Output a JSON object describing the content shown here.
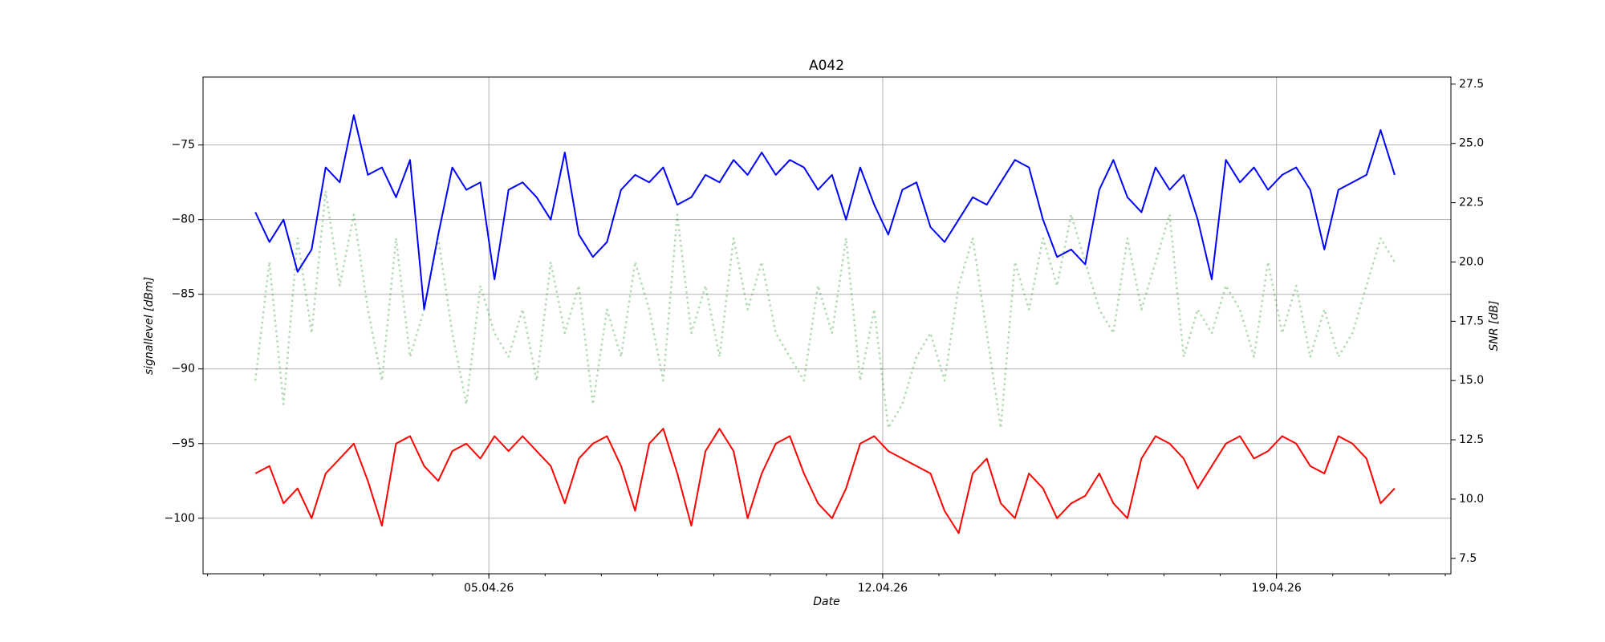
{
  "chart_data": {
    "type": "line",
    "title": "A042",
    "xlabel": "Date",
    "ylabel": "signallevel [dBm]",
    "y2label": "SNR [dB]",
    "x": [
      0.85,
      1.1,
      1.35,
      1.6,
      1.85,
      2.1,
      2.35,
      2.6,
      2.85,
      3.1,
      3.35,
      3.6,
      3.85,
      4.1,
      4.35,
      4.6,
      4.85,
      5.1,
      5.35,
      5.6,
      5.85,
      6.1,
      6.35,
      6.6,
      6.85,
      7.1,
      7.35,
      7.6,
      7.85,
      8.1,
      8.35,
      8.6,
      8.85,
      9.1,
      9.35,
      9.6,
      9.85,
      10.1,
      10.35,
      10.6,
      10.85,
      11.1,
      11.35,
      11.6,
      11.85,
      12.1,
      12.35,
      12.6,
      12.85,
      13.1,
      13.35,
      13.6,
      13.85,
      14.1,
      14.35,
      14.6,
      14.85,
      15.1,
      15.35,
      15.6,
      15.85,
      16.1,
      16.35,
      16.6,
      16.85,
      17.1,
      17.35,
      17.6,
      17.85,
      18.1,
      18.35,
      18.6,
      18.85,
      19.1,
      19.35,
      19.6,
      19.85,
      20.1,
      20.35,
      20.6,
      20.85,
      21.1
    ],
    "series": [
      {
        "color": "#008000",
        "alpha": 0.3,
        "linestyle": "dotted",
        "axis": "y2",
        "values": [
          15,
          20,
          14,
          21,
          17,
          23,
          19,
          22,
          18,
          15,
          21,
          16,
          18,
          21,
          17,
          14,
          19,
          17,
          16,
          18,
          15,
          20,
          17,
          19,
          14,
          18,
          16,
          20,
          18,
          15,
          22,
          17,
          19,
          16,
          21,
          18,
          20,
          17,
          16,
          15,
          19,
          17,
          21,
          15,
          18,
          13,
          14,
          16,
          17,
          15,
          19,
          21,
          17,
          13,
          20,
          18,
          21,
          19,
          22,
          20,
          18,
          17,
          21,
          18,
          20,
          22,
          16,
          18,
          17,
          19,
          18,
          16,
          20,
          17,
          19,
          16,
          18,
          16,
          17,
          19,
          21,
          20
        ]
      },
      {
        "color": "#0000ff",
        "alpha": 1,
        "linestyle": "solid",
        "axis": "y",
        "values": [
          -79.5,
          -81.5,
          -80,
          -83.5,
          -82,
          -76.5,
          -77.5,
          -73,
          -77,
          -76.5,
          -78.5,
          -76,
          -86,
          -81,
          -76.5,
          -78,
          -77.5,
          -84,
          -78,
          -77.5,
          -78.5,
          -80,
          -75.5,
          -81,
          -82.5,
          -81.5,
          -78,
          -77,
          -77.5,
          -76.5,
          -79,
          -78.5,
          -77,
          -77.5,
          -76,
          -77,
          -75.5,
          -77,
          -76,
          -76.5,
          -78,
          -77,
          -80,
          -76.5,
          -79,
          -81,
          -78,
          -77.5,
          -80.5,
          -81.5,
          -80,
          -78.5,
          -79,
          -77.5,
          -76,
          -76.5,
          -80,
          -82.5,
          -82,
          -83,
          -78,
          -76,
          -78.5,
          -79.5,
          -76.5,
          -78,
          -77,
          -80,
          -84,
          -76,
          -77.5,
          -76.5,
          -78,
          -77,
          -76.5,
          -78,
          -82,
          -78,
          -77.5,
          -77,
          -74,
          -77
        ]
      },
      {
        "color": "#ff0000",
        "alpha": 1,
        "linestyle": "solid",
        "axis": "y",
        "values": [
          -97,
          -96.5,
          -99,
          -98,
          -100,
          -97,
          -96,
          -95,
          -97.5,
          -100.5,
          -95,
          -94.5,
          -96.5,
          -97.5,
          -95.5,
          -95,
          -96,
          -94.5,
          -95.5,
          -94.5,
          -95.5,
          -96.5,
          -99,
          -96,
          -95,
          -94.5,
          -96.5,
          -99.5,
          -95,
          -94,
          -97,
          -100.5,
          -95.5,
          -94,
          -95.5,
          -100,
          -97,
          -95,
          -94.5,
          -97,
          -99,
          -100,
          -98,
          -95,
          -94.5,
          -95.5,
          -96,
          -96.5,
          -97,
          -99.5,
          -101,
          -97,
          -96,
          -99,
          -100,
          -97,
          -98,
          -100,
          -99,
          -98.5,
          -97,
          -99,
          -100,
          -96,
          -94.5,
          -95,
          -96,
          -98,
          -96.5,
          -95,
          -94.5,
          -96,
          -95.5,
          -94.5,
          -95,
          -96.5,
          -97,
          -94.5,
          -95,
          -96,
          -99,
          -98
        ]
      }
    ],
    "xlim": [
      -0.08,
      22.1
    ],
    "xticks": [
      {
        "value": 5,
        "label": "05.04.26"
      },
      {
        "value": 12,
        "label": "12.04.26"
      },
      {
        "value": 19,
        "label": "19.04.26"
      }
    ],
    "xticks_minor": [
      0,
      1,
      2,
      3,
      4,
      5,
      6,
      7,
      8,
      9,
      10,
      11,
      12,
      13,
      14,
      15,
      16,
      17,
      18,
      19,
      20,
      21,
      22
    ],
    "ylim": [
      -103.72,
      -70.45
    ],
    "yticks": [
      {
        "value": -100,
        "label": "−100"
      },
      {
        "value": -95,
        "label": "−95"
      },
      {
        "value": -90,
        "label": "−90"
      },
      {
        "value": -85,
        "label": "−85"
      },
      {
        "value": -80,
        "label": "−80"
      },
      {
        "value": -75,
        "label": "−75"
      }
    ],
    "y2lim": [
      6.85,
      27.8
    ],
    "y2ticks": [
      7.5,
      {
        "value": 10,
        "label": "10.0"
      },
      12.5,
      {
        "value": 15,
        "label": "15.0"
      },
      17.5,
      {
        "value": 20,
        "label": "20.0"
      },
      22.5,
      {
        "value": 25,
        "label": "25.0"
      },
      27.5
    ],
    "grid": true
  }
}
